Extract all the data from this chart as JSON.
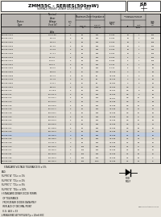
{
  "title": "ZMM55C - SERIES(500mW)",
  "subtitle": "SURFACE MOUNT ZENER DIODES/SOD - MELF",
  "bg_color": "#e8e4dc",
  "header_bg": "#b8b4b0",
  "row_alt_color": "#d8d4cc",
  "highlight_row": 27,
  "highlight_color": "#c0cce0",
  "rows": [
    [
      "ZMM55-C2V4",
      "1.28-1.88",
      "5",
      "95",
      "400",
      "-0.085",
      "50   1",
      "200"
    ],
    [
      "ZMM55-C2V7",
      "2.5-2.9",
      "5",
      "95",
      "500",
      "-0.080",
      "50   1",
      "185"
    ],
    [
      "ZMM55-C3V0",
      "2.8-3.2",
      "5",
      "95",
      "600",
      "-0.075",
      "20   1",
      "165"
    ],
    [
      "ZMM55-C3V3",
      "3.1-3.5",
      "5",
      "95",
      "600",
      "-0.070",
      "20   1",
      "150"
    ],
    [
      "ZMM55-C3V6",
      "3.4-3.8",
      "5",
      "90",
      "600",
      "-0.065",
      "20   1",
      "140"
    ],
    [
      "ZMM55-C3V9",
      "3.7-4.1",
      "5",
      "90",
      "600",
      "-0.060",
      "10   1",
      "130"
    ],
    [
      "ZMM55-C4V3",
      "4.0-4.6",
      "5",
      "90",
      "500",
      "-0.055",
      "5   1",
      "120"
    ],
    [
      "ZMM55-C4V7",
      "4.4-5.0",
      "5",
      "80",
      "500",
      "-0.045",
      "5   1",
      "105"
    ],
    [
      "ZMM55-C5V1",
      "4.8-5.4",
      "5",
      "60",
      "550",
      "-0.030",
      "5   1",
      "95"
    ],
    [
      "ZMM55-C5V6",
      "5.2-6.0",
      "5",
      "40",
      "580",
      "-0.020",
      "5   2",
      "90"
    ],
    [
      "ZMM55-C6V2",
      "5.8-6.6",
      "5",
      "10",
      "150",
      "+0.005",
      "3   3",
      "80"
    ],
    [
      "ZMM55-C6V8",
      "6.4-7.2",
      "5",
      "15",
      "80",
      "+0.015",
      "3   4",
      "75"
    ],
    [
      "ZMM55-C7V5",
      "7.0-7.9",
      "5",
      "15",
      "80",
      "+0.030",
      "3   5",
      "65"
    ],
    [
      "ZMM55-C8V2",
      "7.7-8.7",
      "5",
      "15",
      "80",
      "+0.042",
      "3   6",
      "60"
    ],
    [
      "ZMM55-C9V1",
      "8.5-9.6",
      "5",
      "15",
      "100",
      "+0.056",
      "0.5   7",
      "55"
    ],
    [
      "ZMM55-C10",
      "9.4-10.6",
      "5",
      "20",
      "150",
      "+0.062",
      "0.5   8",
      "50"
    ],
    [
      "ZMM55-C11",
      "10.4-11.6",
      "5",
      "20",
      "150",
      "+0.065",
      "0.5   9",
      "45"
    ],
    [
      "ZMM55-C12",
      "11.4-12.7",
      "5",
      "25",
      "150",
      "+0.067",
      "0.5  10",
      "40"
    ],
    [
      "ZMM55-C13",
      "12.4-14.1",
      "5",
      "30",
      "170",
      "+0.068",
      "0.5  11",
      "38"
    ],
    [
      "ZMM55-C15",
      "13.8-15.6",
      "5",
      "30",
      "200",
      "+0.068",
      "0.5  13",
      "34"
    ],
    [
      "ZMM55-C16",
      "15.3-17.1",
      "5",
      "40",
      "200",
      "+0.068",
      "0.5  14",
      "30"
    ],
    [
      "ZMM55-C18",
      "16.8-19.1",
      "5",
      "45",
      "225",
      "+0.068",
      "0.5  15",
      "28"
    ],
    [
      "ZMM55-C20",
      "18.8-21.2",
      "5",
      "55",
      "225",
      "+0.068",
      "0.5  17",
      "25"
    ],
    [
      "ZMM55-C22",
      "20.8-23.3",
      "5",
      "55",
      "250",
      "+0.068",
      "0.5  19",
      "23"
    ],
    [
      "ZMM55-C24",
      "22.8-25.6",
      "5",
      "80",
      "300",
      "+0.068",
      "0.5  21",
      "21"
    ],
    [
      "ZMM55-C27",
      "25.1-28.9",
      "5",
      "80",
      "350",
      "+0.068",
      "0.5  23",
      "18"
    ],
    [
      "ZMM55-C30",
      "28.0-32.0",
      "3",
      "80",
      "400",
      "+0.068",
      "0.1  26",
      "16"
    ],
    [
      "ZMM55-C33",
      "31.0-35.0",
      "3",
      "80",
      "420",
      "+0.068",
      "0.1  28",
      "15"
    ],
    [
      "ZMM55-C36",
      "34.0-38.0",
      "3",
      "90",
      "450",
      "+0.068",
      "0.1  31",
      "14"
    ],
    [
      "ZMM55-C39",
      "37.0-41.0",
      "3",
      "90",
      "500",
      "+0.068",
      "0.1  33",
      "13"
    ],
    [
      "ZMM55-C43",
      "40.0-46.0",
      "2",
      "130",
      "500",
      "+0.068",
      "0.1  37",
      "12"
    ],
    [
      "ZMM55-C47",
      "44.0-50.0",
      "2",
      "130",
      "550",
      "+0.068",
      "0.1  40",
      "10"
    ],
    [
      "ZMM55-C51",
      "48.0-54.0",
      "2",
      "150",
      "600",
      "+0.068",
      "0.1  45",
      "10"
    ],
    [
      "ZMM55-C56",
      "52.0-60.0",
      "1",
      "200",
      "700",
      "+0.068",
      "0.1  49",
      "9"
    ],
    [
      "ZMM55-C62",
      "58.0-66.0",
      "1",
      "200",
      "1000",
      "+0.068",
      "0.1  53",
      "8"
    ]
  ],
  "header_lines": [
    [
      "Device\nType",
      "Nominal\nZener\nVoltage\nVz at IzT\n\nVolts",
      "Test\nCurrent\nIzT\n\nmA",
      "Maximum Zener Impedance\nZzT at   Zzk at\nIzT       Izk=1mA\nΩ         Ω",
      "",
      "Typical\nTemperature\nCoefficient\n%/°C",
      "Maximum Reverse\nLeakage Current\nIR    Test-Voltage\nsuffix B\nμA     Volts",
      "Maximum\nRegulator\nCurrent\nIzM\n\nmA"
    ]
  ],
  "col_headers": [
    "Device\nType",
    "Nominal\nZener\nVoltage\nVz at IzT\nVolts",
    "Test\nCurrent\nIzT\nmA",
    "ZzT at\nIzT\nΩ",
    "Zzk at\nIzk=1 mA\nΩ",
    "Typical\nTemp.\nCoeff.\n%/°C",
    "IR\nμA",
    "Test-\nVoltage\nVolts",
    "Maximum\nRegulator\nCurrent\nIzM\nmA"
  ],
  "footer_lines": [
    "    STANDARD VOLTAGE TOLERANCE IS ± 5%",
    "AND:",
    "SUFFIX 'A'  TOL= ± 1%",
    "SUFFIX 'B'  TOL= ± 2%",
    "SUFFIX 'C'  TOL= ± 5%",
    "SUFFIX 'D'  TOL= ± 10%",
    "† STANDARD ZENER DIODE FORMS",
    "  OF TOLERANCE:",
    "  FROM ZENER DIODES DATA MELF",
    "  REPLACE OF DECIMAL POINT",
    "  E.G.: A33 = 33",
    "‡ MEASURED WITH PULSE Tp = 20mS 60C"
  ]
}
